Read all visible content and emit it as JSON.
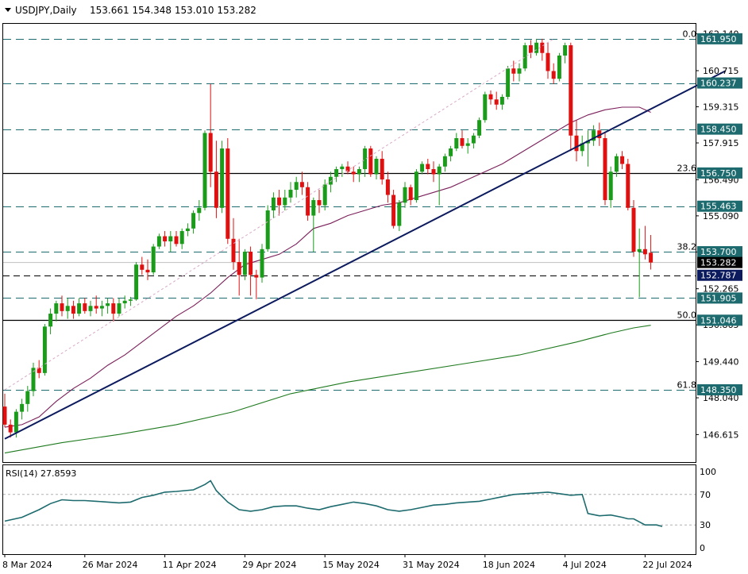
{
  "header": {
    "symbol": "USDJPY,Daily",
    "ohlc": "153.661 154.348 153.010 153.282"
  },
  "chart_data": {
    "type": "candlestick",
    "price_axis": {
      "min": 145.55,
      "max": 162.53,
      "ticks": [
        "162.140",
        "160.715",
        "159.315",
        "157.915",
        "156.490",
        "155.090",
        "153.690",
        "152.265",
        "150.865",
        "149.440",
        "148.040",
        "146.615"
      ]
    },
    "date_labels": [
      "8 Mar 2024",
      "26 Mar 2024",
      "11 Apr 2024",
      "29 Apr 2024",
      "15 May 2024",
      "31 May 2024",
      "18 Jun 2024",
      "4 Jul 2024",
      "22 Jul 2024"
    ],
    "date_label_bars": [
      0,
      14,
      28,
      42,
      56,
      70,
      84,
      98,
      112
    ],
    "levels": [
      {
        "value": 161.95,
        "label": "161.950",
        "style": "dash",
        "fib": "0.0"
      },
      {
        "value": 160.237,
        "label": "160.237",
        "style": "dash"
      },
      {
        "value": 158.45,
        "label": "158.450",
        "style": "dash"
      },
      {
        "value": 156.75,
        "label": "156.750",
        "style": "solid",
        "fib": "23.6"
      },
      {
        "value": 155.463,
        "label": "155.463",
        "style": "dash"
      },
      {
        "value": 153.7,
        "label": "153.700",
        "style": "dash",
        "fib": "38.2"
      },
      {
        "value": 152.787,
        "label": "152.787",
        "style": "dash-black",
        "highlight": "#0c1a5e"
      },
      {
        "value": 151.905,
        "label": "151.905",
        "style": "dash"
      },
      {
        "value": 151.046,
        "label": "151.046",
        "style": "solid",
        "fib": "50.0"
      },
      {
        "value": 148.35,
        "label": "148.350",
        "style": "dash",
        "fib": "61.8"
      }
    ],
    "current_price": {
      "value": 153.282,
      "label": "153.282"
    },
    "trendline": {
      "from": {
        "bar": 0,
        "price": 146.45
      },
      "to": {
        "bar": 126,
        "price": 160.7
      }
    },
    "fib_diagonal": {
      "from": {
        "bar": 0,
        "price": 148.35
      },
      "to": {
        "bar": 96,
        "price": 161.95
      }
    },
    "candles": [
      [
        147.7,
        148.2,
        146.9,
        147.0
      ],
      [
        147.0,
        147.2,
        146.5,
        146.7
      ],
      [
        146.7,
        147.6,
        146.5,
        147.5
      ],
      [
        147.5,
        148.0,
        147.2,
        147.8
      ],
      [
        147.8,
        148.5,
        147.5,
        148.3
      ],
      [
        148.3,
        149.4,
        148.1,
        149.2
      ],
      [
        149.2,
        149.5,
        148.8,
        149.0
      ],
      [
        149.0,
        150.9,
        148.9,
        150.8
      ],
      [
        150.8,
        151.5,
        150.5,
        151.3
      ],
      [
        151.3,
        151.8,
        151.0,
        151.7
      ],
      [
        151.7,
        152.0,
        151.2,
        151.4
      ],
      [
        151.4,
        151.9,
        151.1,
        151.6
      ],
      [
        151.6,
        151.8,
        151.1,
        151.3
      ],
      [
        151.3,
        151.9,
        151.2,
        151.7
      ],
      [
        151.7,
        151.9,
        151.3,
        151.4
      ],
      [
        151.4,
        151.8,
        151.2,
        151.6
      ],
      [
        151.6,
        152.0,
        151.3,
        151.5
      ],
      [
        151.5,
        151.8,
        151.2,
        151.6
      ],
      [
        151.6,
        151.9,
        151.3,
        151.7
      ],
      [
        151.7,
        151.9,
        151.0,
        151.3
      ],
      [
        151.3,
        151.9,
        151.2,
        151.7
      ],
      [
        151.7,
        152.0,
        151.5,
        151.8
      ],
      [
        151.8,
        151.95,
        151.6,
        151.85
      ],
      [
        151.85,
        153.3,
        151.8,
        153.2
      ],
      [
        153.2,
        153.5,
        152.8,
        153.0
      ],
      [
        153.0,
        153.4,
        152.6,
        152.9
      ],
      [
        152.9,
        154.0,
        152.8,
        153.9
      ],
      [
        153.9,
        154.4,
        153.8,
        154.3
      ],
      [
        154.3,
        154.5,
        153.9,
        154.1
      ],
      [
        154.1,
        154.5,
        153.7,
        154.3
      ],
      [
        154.3,
        154.5,
        153.9,
        154.0
      ],
      [
        154.0,
        154.6,
        153.8,
        154.5
      ],
      [
        154.5,
        154.8,
        154.3,
        154.6
      ],
      [
        154.6,
        155.3,
        154.4,
        155.2
      ],
      [
        155.2,
        155.7,
        154.9,
        155.4
      ],
      [
        155.4,
        158.4,
        155.3,
        158.3
      ],
      [
        158.3,
        160.2,
        156.2,
        156.8
      ],
      [
        156.8,
        158.0,
        155.0,
        155.4
      ],
      [
        155.4,
        158.0,
        155.2,
        157.7
      ],
      [
        157.7,
        158.1,
        154.0,
        154.2
      ],
      [
        154.2,
        155.0,
        153.0,
        153.3
      ],
      [
        153.3,
        154.2,
        152.0,
        152.8
      ],
      [
        152.8,
        153.8,
        152.6,
        153.7
      ],
      [
        153.7,
        153.9,
        152.0,
        152.8
      ],
      [
        152.8,
        153.0,
        151.86,
        152.7
      ],
      [
        152.7,
        154.0,
        152.5,
        153.8
      ],
      [
        153.8,
        155.5,
        153.7,
        155.3
      ],
      [
        155.3,
        156.0,
        155.0,
        155.8
      ],
      [
        155.8,
        156.1,
        155.1,
        155.5
      ],
      [
        155.5,
        156.1,
        155.3,
        155.8
      ],
      [
        155.8,
        156.4,
        155.6,
        156.1
      ],
      [
        156.1,
        156.6,
        155.8,
        156.4
      ],
      [
        156.4,
        156.8,
        155.9,
        156.2
      ],
      [
        156.2,
        156.4,
        154.9,
        155.1
      ],
      [
        155.1,
        155.8,
        153.7,
        155.7
      ],
      [
        155.7,
        156.1,
        155.2,
        155.5
      ],
      [
        155.5,
        156.5,
        155.3,
        156.3
      ],
      [
        156.3,
        156.8,
        156.0,
        156.6
      ],
      [
        156.6,
        157.0,
        156.4,
        156.9
      ],
      [
        156.9,
        157.1,
        156.6,
        157.0
      ],
      [
        157.0,
        157.2,
        156.7,
        156.8
      ],
      [
        156.8,
        157.0,
        156.4,
        156.7
      ],
      [
        156.7,
        157.0,
        156.4,
        156.9
      ],
      [
        156.9,
        157.8,
        156.6,
        157.7
      ],
      [
        157.7,
        157.8,
        156.6,
        156.7
      ],
      [
        156.7,
        157.4,
        156.5,
        157.3
      ],
      [
        157.3,
        157.6,
        156.3,
        156.5
      ],
      [
        156.5,
        156.8,
        155.6,
        155.9
      ],
      [
        155.9,
        156.1,
        154.6,
        154.7
      ],
      [
        154.7,
        155.7,
        154.5,
        155.6
      ],
      [
        155.6,
        156.4,
        155.4,
        156.2
      ],
      [
        156.2,
        156.3,
        155.5,
        155.7
      ],
      [
        155.7,
        156.9,
        155.6,
        156.8
      ],
      [
        156.8,
        157.2,
        156.7,
        157.1
      ],
      [
        157.1,
        157.3,
        156.7,
        156.9
      ],
      [
        156.9,
        157.2,
        156.4,
        156.7
      ],
      [
        156.7,
        157.1,
        155.5,
        157.0
      ],
      [
        157.0,
        157.5,
        156.8,
        157.4
      ],
      [
        157.4,
        157.8,
        157.2,
        157.7
      ],
      [
        157.7,
        158.3,
        157.6,
        158.1
      ],
      [
        158.1,
        158.4,
        157.7,
        157.8
      ],
      [
        157.8,
        158.1,
        157.5,
        157.9
      ],
      [
        157.9,
        158.3,
        157.7,
        158.2
      ],
      [
        158.2,
        158.9,
        158.1,
        158.8
      ],
      [
        158.8,
        159.9,
        158.7,
        159.8
      ],
      [
        159.8,
        159.95,
        159.4,
        159.6
      ],
      [
        159.6,
        159.9,
        159.2,
        159.4
      ],
      [
        159.4,
        159.8,
        159.2,
        159.7
      ],
      [
        159.7,
        160.9,
        159.6,
        160.8
      ],
      [
        160.8,
        161.1,
        160.3,
        160.6
      ],
      [
        160.6,
        161.0,
        160.3,
        160.8
      ],
      [
        160.8,
        161.8,
        160.7,
        161.7
      ],
      [
        161.7,
        161.9,
        161.2,
        161.4
      ],
      [
        161.4,
        161.95,
        161.3,
        161.8
      ],
      [
        161.8,
        161.95,
        161.1,
        161.4
      ],
      [
        161.4,
        161.8,
        160.4,
        160.7
      ],
      [
        160.7,
        161.0,
        160.2,
        160.4
      ],
      [
        160.4,
        161.4,
        160.3,
        161.3
      ],
      [
        161.3,
        161.8,
        161.0,
        161.7
      ],
      [
        161.7,
        161.8,
        157.6,
        158.2
      ],
      [
        158.2,
        158.8,
        157.2,
        157.6
      ],
      [
        157.6,
        158.2,
        157.4,
        157.9
      ],
      [
        157.9,
        158.4,
        157.0,
        158.0
      ],
      [
        158.0,
        158.6,
        157.8,
        158.4
      ],
      [
        158.4,
        158.7,
        157.8,
        158.1
      ],
      [
        158.1,
        158.3,
        155.5,
        155.7
      ],
      [
        155.7,
        157.0,
        155.4,
        156.8
      ],
      [
        156.8,
        157.5,
        156.6,
        157.4
      ],
      [
        157.4,
        157.6,
        156.9,
        157.1
      ],
      [
        157.1,
        157.3,
        155.3,
        155.4
      ],
      [
        155.4,
        155.7,
        153.5,
        153.7
      ],
      [
        153.7,
        154.6,
        151.94,
        153.8
      ],
      [
        153.8,
        154.7,
        153.4,
        153.6
      ],
      [
        153.661,
        154.348,
        153.01,
        153.282
      ]
    ],
    "ma_purple": [
      [
        0,
        146.9
      ],
      [
        3,
        147.0
      ],
      [
        6,
        147.3
      ],
      [
        9,
        147.9
      ],
      [
        12,
        148.4
      ],
      [
        15,
        148.8
      ],
      [
        18,
        149.3
      ],
      [
        21,
        149.7
      ],
      [
        24,
        150.2
      ],
      [
        27,
        150.7
      ],
      [
        30,
        151.2
      ],
      [
        33,
        151.6
      ],
      [
        36,
        152.1
      ],
      [
        39,
        152.7
      ],
      [
        42,
        153.2
      ],
      [
        45,
        153.4
      ],
      [
        48,
        153.6
      ],
      [
        51,
        154.0
      ],
      [
        54,
        154.6
      ],
      [
        57,
        154.8
      ],
      [
        60,
        155.1
      ],
      [
        63,
        155.3
      ],
      [
        66,
        155.5
      ],
      [
        69,
        155.6
      ],
      [
        72,
        155.8
      ],
      [
        75,
        156.0
      ],
      [
        78,
        156.2
      ],
      [
        81,
        156.5
      ],
      [
        84,
        156.8
      ],
      [
        87,
        157.1
      ],
      [
        90,
        157.5
      ],
      [
        93,
        157.9
      ],
      [
        96,
        158.3
      ],
      [
        99,
        158.7
      ],
      [
        102,
        159.0
      ],
      [
        105,
        159.2
      ],
      [
        108,
        159.3
      ],
      [
        111,
        159.3
      ],
      [
        113,
        159.1
      ]
    ],
    "ma_green": [
      [
        0,
        145.9
      ],
      [
        10,
        146.3
      ],
      [
        20,
        146.62
      ],
      [
        30,
        147.0
      ],
      [
        40,
        147.5
      ],
      [
        50,
        148.2
      ],
      [
        60,
        148.65
      ],
      [
        70,
        149.0
      ],
      [
        80,
        149.35
      ],
      [
        90,
        149.7
      ],
      [
        100,
        150.2
      ],
      [
        106,
        150.55
      ],
      [
        110,
        150.75
      ],
      [
        113,
        150.85
      ]
    ],
    "rsi": {
      "label": "RSI(14) 27.8593",
      "ticks": [
        "100",
        "70",
        "30",
        "0"
      ],
      "levels": [
        70,
        30
      ],
      "points": [
        [
          0,
          35
        ],
        [
          3,
          40
        ],
        [
          6,
          50
        ],
        [
          8,
          58
        ],
        [
          10,
          63
        ],
        [
          12,
          62
        ],
        [
          14,
          62
        ],
        [
          16,
          61
        ],
        [
          18,
          60
        ],
        [
          20,
          59
        ],
        [
          22,
          60
        ],
        [
          24,
          66
        ],
        [
          26,
          69
        ],
        [
          28,
          73
        ],
        [
          30,
          74
        ],
        [
          33,
          76
        ],
        [
          35,
          83
        ],
        [
          36,
          88
        ],
        [
          37,
          75
        ],
        [
          39,
          60
        ],
        [
          41,
          50
        ],
        [
          43,
          48
        ],
        [
          45,
          50
        ],
        [
          47,
          54
        ],
        [
          49,
          55
        ],
        [
          51,
          55
        ],
        [
          53,
          52
        ],
        [
          55,
          50
        ],
        [
          57,
          54
        ],
        [
          59,
          57
        ],
        [
          61,
          60
        ],
        [
          63,
          58
        ],
        [
          65,
          55
        ],
        [
          67,
          50
        ],
        [
          69,
          48
        ],
        [
          71,
          50
        ],
        [
          73,
          53
        ],
        [
          75,
          56
        ],
        [
          77,
          57
        ],
        [
          79,
          59
        ],
        [
          81,
          60
        ],
        [
          83,
          61
        ],
        [
          85,
          64
        ],
        [
          87,
          67
        ],
        [
          89,
          70
        ],
        [
          91,
          71
        ],
        [
          93,
          72
        ],
        [
          95,
          73
        ],
        [
          97,
          71
        ],
        [
          99,
          69
        ],
        [
          101,
          70
        ],
        [
          102,
          45
        ],
        [
          104,
          42
        ],
        [
          106,
          43
        ],
        [
          108,
          40
        ],
        [
          109,
          38
        ],
        [
          110,
          38
        ],
        [
          112,
          30
        ],
        [
          114,
          30
        ],
        [
          115,
          28
        ]
      ]
    }
  }
}
